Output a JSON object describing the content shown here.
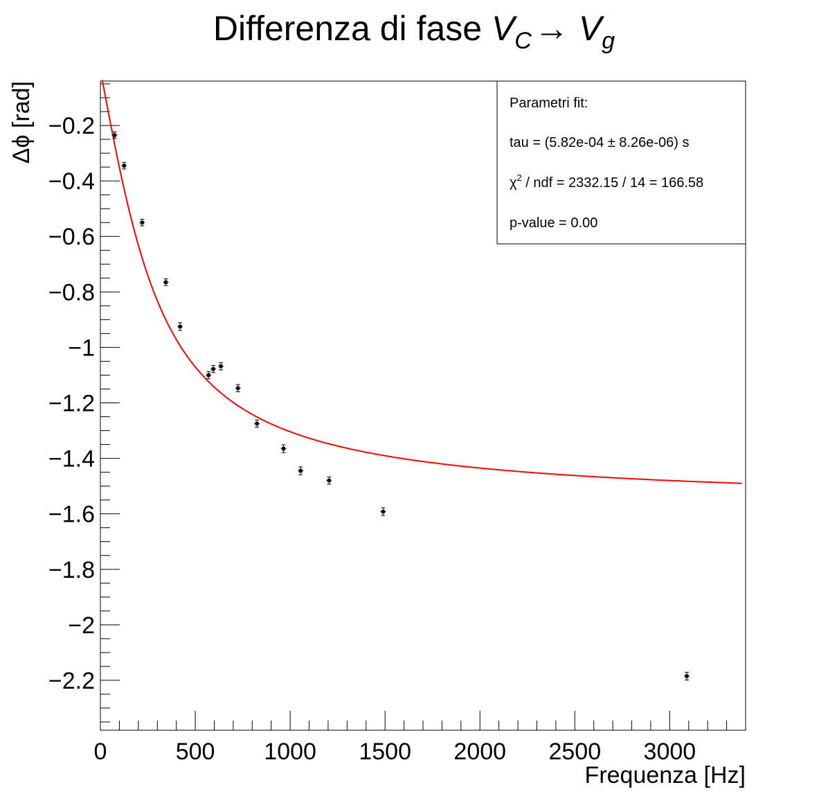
{
  "chart_data": {
    "type": "scatter",
    "title": {
      "main": "Differenza di fase ",
      "v1_base": "V",
      "v1_sub": "C",
      "arrow": "→",
      "v2_base": "V",
      "v2_sub": "g"
    },
    "xlabel": "Frequenza [Hz]",
    "ylabel": "Δϕ [rad]",
    "xlim": [
      0,
      3400
    ],
    "ylim": [
      -2.38,
      -0.04
    ],
    "x_ticks": [
      0,
      500,
      1000,
      1500,
      2000,
      2500,
      3000
    ],
    "x_tick_labels": [
      "0",
      "500",
      "1000",
      "1500",
      "2000",
      "2500",
      "3000"
    ],
    "y_ticks": [
      -0.2,
      -0.4,
      -0.6,
      -0.8,
      -1.0,
      -1.2,
      -1.4,
      -1.6,
      -1.8,
      -2.0,
      -2.2
    ],
    "y_tick_labels": [
      "−0.2",
      "−0.4",
      "−0.6",
      "−0.8",
      "−1",
      "−1.2",
      "−1.4",
      "−1.6",
      "−1.8",
      "−2",
      "−2.2"
    ],
    "grid": false,
    "legend": "none",
    "series": [
      {
        "points": [
          {
            "x": 75,
            "y": -0.235,
            "err": 0.012
          },
          {
            "x": 125,
            "y": -0.345,
            "err": 0.012
          },
          {
            "x": 220,
            "y": -0.55,
            "err": 0.012
          },
          {
            "x": 345,
            "y": -0.765,
            "err": 0.012
          },
          {
            "x": 420,
            "y": -0.925,
            "err": 0.014
          },
          {
            "x": 570,
            "y": -1.1,
            "err": 0.013
          },
          {
            "x": 595,
            "y": -1.078,
            "err": 0.013
          },
          {
            "x": 635,
            "y": -1.068,
            "err": 0.013
          },
          {
            "x": 725,
            "y": -1.147,
            "err": 0.013
          },
          {
            "x": 825,
            "y": -1.275,
            "err": 0.013
          },
          {
            "x": 965,
            "y": -1.365,
            "err": 0.014
          },
          {
            "x": 1055,
            "y": -1.445,
            "err": 0.014
          },
          {
            "x": 1205,
            "y": -1.48,
            "err": 0.013
          },
          {
            "x": 1490,
            "y": -1.592,
            "err": 0.014
          },
          {
            "x": 3090,
            "y": -2.185,
            "err": 0.014
          }
        ],
        "color": "#000000"
      },
      {
        "type": "line",
        "function": "-atan(2*pi*f*tau)",
        "tau": 0.000582,
        "x_range": [
          10,
          3380
        ],
        "color": "#ff0000"
      }
    ],
    "stats_box": {
      "header": "Parametri fit:",
      "tau_line": "tau = (5.82e-04 ± 8.26e-06) s",
      "chi_symbol": "χ",
      "chi_sup": "2",
      "chi_rest": " / ndf = 2332.15 / 14 = 166.58",
      "pvalue_line": "p-value = 0.00"
    }
  }
}
